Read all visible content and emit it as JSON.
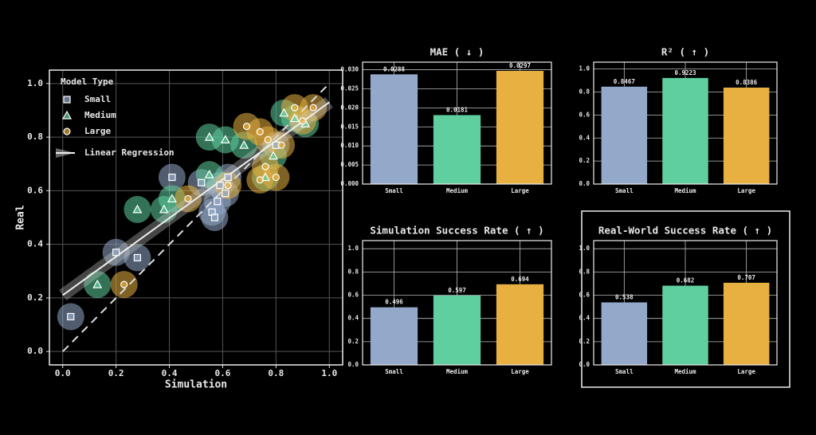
{
  "chart_data": [
    {
      "type": "scatter",
      "x_label": "Simulation",
      "y_label": "Real",
      "legend_title": "Model Type",
      "legend": "upper left",
      "grid": true,
      "xlim": [
        -0.05,
        1.05
      ],
      "ylim": [
        -0.05,
        1.05
      ],
      "xticks": [
        {
          "value": 0,
          "label": "0.0"
        },
        0.2,
        0.4,
        0.6,
        0.8,
        {
          "value": 1,
          "label": "1.0"
        }
      ],
      "yticks": [
        {
          "value": 0,
          "label": "0.0"
        },
        0.2,
        0.4,
        0.6,
        0.8,
        {
          "value": 1,
          "label": "1.0"
        }
      ],
      "series": [
        {
          "name": "Small",
          "color": "#94a9c9",
          "marker": "square",
          "x": [
            0.03,
            0.2,
            0.28,
            0.41,
            0.52,
            0.59,
            0.61,
            0.56,
            0.57,
            0.58,
            0.62,
            0.8
          ],
          "values": [
            0.13,
            0.37,
            0.35,
            0.65,
            0.63,
            0.62,
            0.59,
            0.52,
            0.5,
            0.56,
            0.65,
            0.77
          ]
        },
        {
          "name": "Medium",
          "color": "#5fcf9f",
          "marker": "triangle",
          "x": [
            0.13,
            0.28,
            0.38,
            0.41,
            0.55,
            0.55,
            0.61,
            0.68,
            0.76,
            0.79,
            0.83,
            0.87,
            0.91
          ],
          "values": [
            0.25,
            0.53,
            0.53,
            0.57,
            0.8,
            0.66,
            0.79,
            0.77,
            0.65,
            0.73,
            0.89,
            0.87,
            0.85
          ]
        },
        {
          "name": "Large",
          "color": "#e8b040",
          "marker": "circle",
          "x": [
            0.23,
            0.47,
            0.62,
            0.69,
            0.74,
            0.76,
            0.77,
            0.82,
            0.8,
            0.87,
            0.9,
            0.94,
            0.74
          ],
          "values": [
            0.25,
            0.57,
            0.62,
            0.84,
            0.82,
            0.69,
            0.79,
            0.77,
            0.65,
            0.91,
            0.86,
            0.91,
            0.64
          ]
        }
      ],
      "regression": {
        "name": "Linear Regression",
        "color": "#c8c8c8",
        "x": [
          0,
          1
        ],
        "values": [
          0.21,
          0.93
        ]
      },
      "reference_line": {
        "color": "#dddddd",
        "x": [
          0,
          1
        ],
        "values": [
          0,
          1
        ]
      }
    },
    {
      "type": "bar",
      "title": "MAE ( ↓ )",
      "categories": [
        "Small",
        "Medium",
        "Large"
      ],
      "values": [
        0.0288,
        0.0181,
        0.0297
      ],
      "colors": [
        "#94a9c9",
        "#5fcf9f",
        "#e8b040"
      ],
      "grid": true,
      "ylim": [
        0,
        0.032
      ],
      "yticks": [
        {
          "value": 0,
          "label": "0.000"
        },
        0.005,
        {
          "value": 0.01,
          "label": "0.010"
        },
        0.015,
        {
          "value": 0.02,
          "label": "0.020"
        },
        0.025,
        {
          "value": 0.03,
          "label": "0.030"
        }
      ]
    },
    {
      "type": "bar",
      "title": "R² ( ↑ )",
      "categories": [
        "Small",
        "Medium",
        "Large"
      ],
      "values": [
        0.8467,
        0.9223,
        0.8386
      ],
      "colors": [
        "#94a9c9",
        "#5fcf9f",
        "#e8b040"
      ],
      "grid": true,
      "ylim": [
        0,
        1.06
      ],
      "yticks": [
        {
          "value": 0,
          "label": "0.0"
        },
        0.2,
        0.4,
        0.6,
        0.8,
        {
          "value": 1,
          "label": "1.0"
        }
      ]
    },
    {
      "type": "bar",
      "title": "Simulation Success Rate ( ↑ )",
      "categories": [
        "Small",
        "Medium",
        "Large"
      ],
      "values": [
        0.496,
        0.597,
        0.694
      ],
      "colors": [
        "#94a9c9",
        "#5fcf9f",
        "#e8b040"
      ],
      "grid": true,
      "ylim": [
        0,
        1.07
      ],
      "yticks": [
        {
          "value": 0,
          "label": "0.0"
        },
        0.2,
        0.4,
        0.6,
        0.8,
        {
          "value": 1,
          "label": "1.0"
        }
      ]
    },
    {
      "type": "bar",
      "title": "Real-World Success Rate ( ↑ )",
      "categories": [
        "Small",
        "Medium",
        "Large"
      ],
      "values": [
        0.538,
        0.682,
        0.707
      ],
      "colors": [
        "#94a9c9",
        "#5fcf9f",
        "#e8b040"
      ],
      "grid": true,
      "highlight": true,
      "ylim": [
        0,
        1.07
      ],
      "yticks": [
        {
          "value": 0,
          "label": "0.0"
        },
        0.2,
        0.4,
        0.6,
        0.8,
        {
          "value": 1,
          "label": "1.0"
        }
      ]
    }
  ]
}
